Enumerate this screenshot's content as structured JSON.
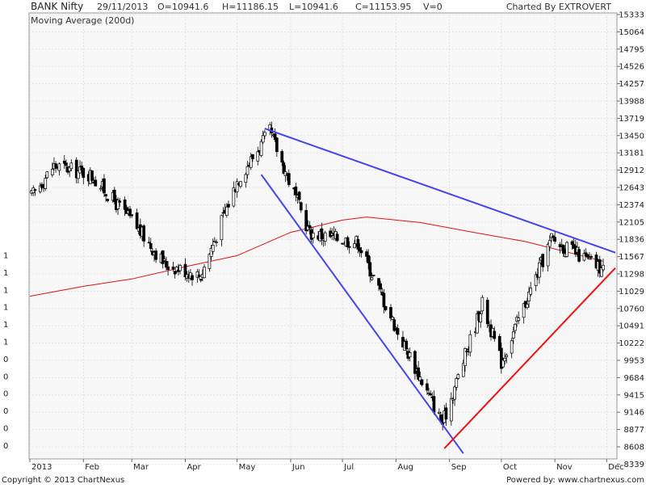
{
  "header": {
    "symbol": "BANK Nifty",
    "date": "29/11/2013",
    "open": "O=10941.6",
    "high": "H=11186.15",
    "low": "L=10941.6",
    "close": "C=11153.95",
    "volume": "V=0",
    "charted_by": "Charted By EXTROVERT"
  },
  "legend": {
    "ma_label": "Moving Average (200d)"
  },
  "footer": {
    "copyright": "Copyright © 2013 ChartNexus",
    "powered_by": "Powered by: www.chartnexus.com"
  },
  "left_axis_labels": [
    "1",
    "1",
    "1",
    "1",
    "1",
    "1",
    "0",
    "0",
    "0",
    "0",
    "0",
    "0"
  ],
  "colors": {
    "background": "#ffffff",
    "plot_background": "#f7f7f7",
    "grid": "#d8d8d8",
    "candle": "#000000",
    "moving_average": "#dd1111",
    "down_trendline": "#4444ee",
    "up_trendline": "#ee1111"
  },
  "chart_data": {
    "type": "candlestick",
    "y_ticks": [
      15333,
      15064,
      14795,
      14526,
      14257,
      13988,
      13719,
      13450,
      13181,
      12912,
      12643,
      12374,
      12105,
      11836,
      11567,
      11298,
      11029,
      10760,
      10491,
      10222,
      9953,
      9684,
      9415,
      9146,
      8877,
      8608,
      8339
    ],
    "ylim": [
      8070,
      15333
    ],
    "x_ticks": [
      "2013",
      "Feb",
      "Mar",
      "Apr",
      "May",
      "Jun",
      "Jul",
      "Aug",
      "Sep",
      "Oct",
      "Nov",
      "Dec"
    ],
    "ohlc_samples": [
      {
        "date": "2013-01-02",
        "close": 12350
      },
      {
        "date": "2013-01-15",
        "close": 12850
      },
      {
        "date": "2013-02-05",
        "close": 12700
      },
      {
        "date": "2013-03-01",
        "close": 11950
      },
      {
        "date": "2013-03-20",
        "close": 11250
      },
      {
        "date": "2013-04-10",
        "close": 11050
      },
      {
        "date": "2013-05-01",
        "close": 12600
      },
      {
        "date": "2013-05-20",
        "close": 13400
      },
      {
        "date": "2013-06-12",
        "close": 11750
      },
      {
        "date": "2013-07-10",
        "close": 11600
      },
      {
        "date": "2013-08-01",
        "close": 10200
      },
      {
        "date": "2013-08-28",
        "close": 8650
      },
      {
        "date": "2013-09-20",
        "close": 10600
      },
      {
        "date": "2013-10-01",
        "close": 9650
      },
      {
        "date": "2013-10-30",
        "close": 11650
      },
      {
        "date": "2013-11-29",
        "close": 11153.95
      }
    ],
    "moving_average": {
      "name": "Moving Average (200d)",
      "points": [
        {
          "date": "2013-01-01",
          "value": 10720
        },
        {
          "date": "2013-02-01",
          "value": 10880
        },
        {
          "date": "2013-03-01",
          "value": 11000
        },
        {
          "date": "2013-04-01",
          "value": 11200
        },
        {
          "date": "2013-05-01",
          "value": 11380
        },
        {
          "date": "2013-06-01",
          "value": 11760
        },
        {
          "date": "2013-07-01",
          "value": 11960
        },
        {
          "date": "2013-07-15",
          "value": 12010
        },
        {
          "date": "2013-08-15",
          "value": 11920
        },
        {
          "date": "2013-09-15",
          "value": 11760
        },
        {
          "date": "2013-10-15",
          "value": 11610
        },
        {
          "date": "2013-11-29",
          "value": 11290
        }
      ]
    },
    "trendlines": [
      {
        "name": "upper-resistance",
        "from": {
          "date": "2013-05-17",
          "value": 13450
        },
        "to": {
          "date": "2013-12-06",
          "value": 11430
        }
      },
      {
        "name": "lower-resistance",
        "from": {
          "date": "2013-05-15",
          "value": 12700
        },
        "to": {
          "date": "2013-09-09",
          "value": 8160
        }
      },
      {
        "name": "support",
        "from": {
          "date": "2013-08-29",
          "value": 8240
        },
        "to": {
          "date": "2013-12-06",
          "value": 11180
        }
      }
    ],
    "grid": true
  }
}
